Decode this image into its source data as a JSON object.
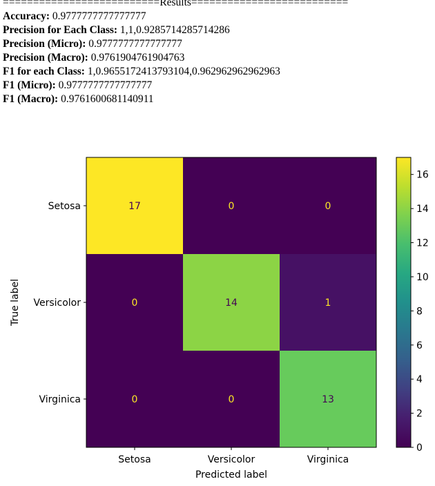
{
  "results": {
    "banner": "==========================Results==========================",
    "metrics": [
      {
        "label": "Accuracy:",
        "value": "0.9777777777777777"
      },
      {
        "label": "Precision for Each Class:",
        "value": "1,1,0.9285714285714286"
      },
      {
        "label": "Precision (Micro):",
        "value": "0.9777777777777777"
      },
      {
        "label": "Precision (Macro):",
        "value": "0.9761904761904763"
      },
      {
        "label": "F1 for each Class:",
        "value": "1,0.9655172413793104,0.962962962962963"
      },
      {
        "label": "F1 (Micro):",
        "value": "0.9777777777777777"
      },
      {
        "label": "F1 (Macro):",
        "value": "0.9761600681140911"
      }
    ]
  },
  "chart_data": {
    "type": "heatmap",
    "title": "",
    "xlabel": "Predicted label",
    "ylabel": "True label",
    "x_categories": [
      "Setosa",
      "Versicolor",
      "Virginica"
    ],
    "y_categories": [
      "Setosa",
      "Versicolor",
      "Virginica"
    ],
    "values": [
      [
        17,
        0,
        0
      ],
      [
        0,
        14,
        1
      ],
      [
        0,
        0,
        13
      ]
    ],
    "colormap": "viridis",
    "colorbar": {
      "min": 0,
      "max": 17,
      "ticks": [
        0,
        2,
        4,
        6,
        8,
        10,
        12,
        14,
        16
      ]
    },
    "grid": false
  },
  "colors": {
    "text_on_dark": "#fde725",
    "text_on_light": "#440154",
    "axis": "#000000"
  }
}
